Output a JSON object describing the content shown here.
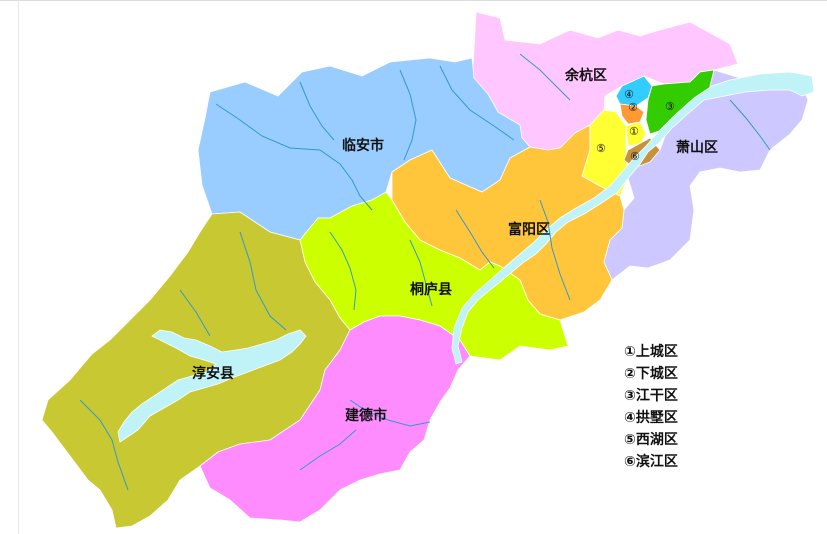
{
  "regions": [
    {
      "name": "余杭区",
      "color": "#ffc6ff"
    },
    {
      "name": "临安市",
      "color": "#99ccff"
    },
    {
      "name": "萧山区",
      "color": "#cdc8ff"
    },
    {
      "name": "富阳区",
      "color": "#ffc63c"
    },
    {
      "name": "桐庐县",
      "color": "#ccff00"
    },
    {
      "name": "淳安县",
      "color": "#c8c832"
    },
    {
      "name": "建德市",
      "color": "#ff8cff"
    }
  ],
  "districts": [
    {
      "marker": "①",
      "color": "#ffff33"
    },
    {
      "marker": "②",
      "color": "#ff9933"
    },
    {
      "marker": "③",
      "color": "#33cc00"
    },
    {
      "marker": "④",
      "color": "#33ccff"
    },
    {
      "marker": "⑤",
      "color": "#ffff33"
    },
    {
      "marker": "⑥",
      "color": "#c8913c"
    }
  ],
  "legend": [
    "①上城区",
    "②下城区",
    "③江干区",
    "④拱墅区",
    "⑤西湖区",
    "⑥滨江区"
  ],
  "water_color": "#bff3f8",
  "river_color": "#3399cc"
}
